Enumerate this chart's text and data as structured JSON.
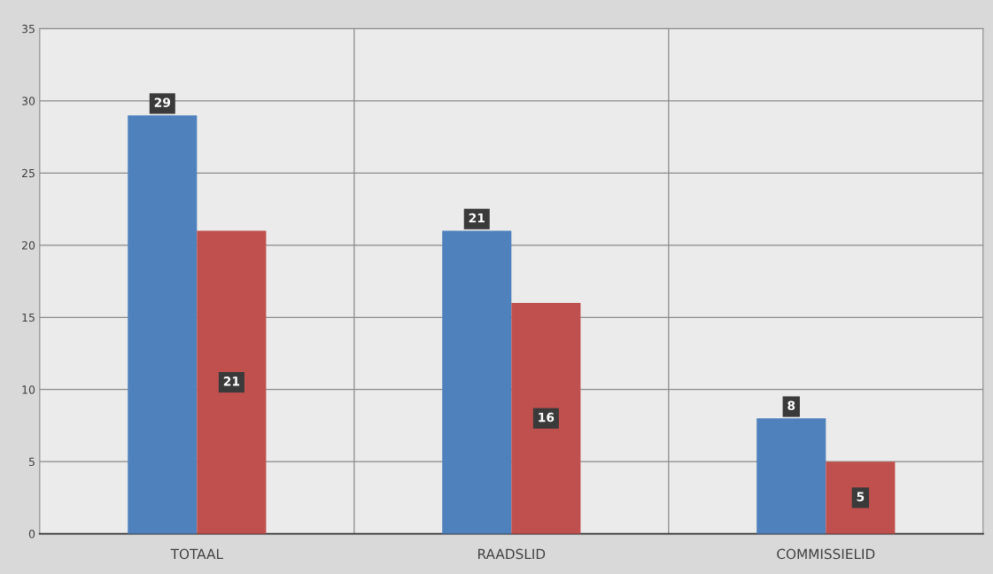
{
  "chart_data": {
    "type": "bar",
    "categories": [
      "TOTAAL",
      "RAADSLID",
      "COMMISSIELID"
    ],
    "series": [
      {
        "color": "#4f81bd",
        "values": [
          29,
          21,
          8
        ]
      },
      {
        "color": "#c0504d",
        "values": [
          21,
          16,
          5
        ]
      }
    ],
    "ylim": [
      0,
      35
    ],
    "yticks": [
      0,
      5,
      10,
      15,
      20,
      25,
      30,
      35
    ],
    "grid": true,
    "data_labels": true
  }
}
